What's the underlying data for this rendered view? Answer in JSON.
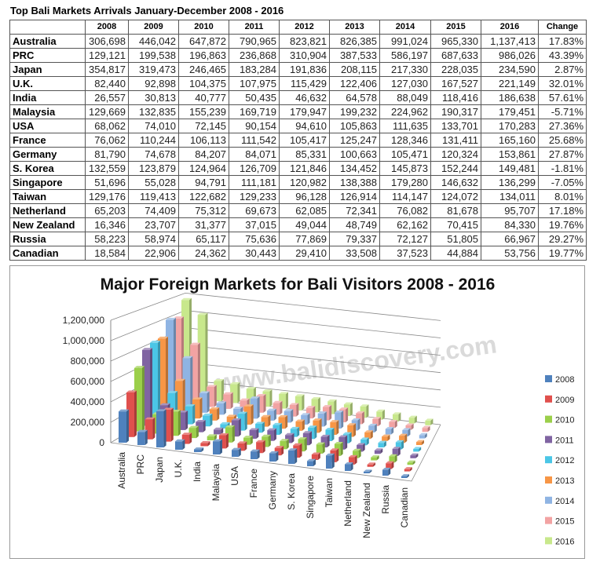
{
  "table": {
    "title": "Top Bali Markets Arrivals January-December 2008 - 2016",
    "headers": [
      "",
      "2008",
      "2009",
      "2010",
      "2011",
      "2012",
      "2013",
      "2014",
      "2015",
      "2016",
      "Change"
    ],
    "rows": [
      [
        "Australia",
        "306,698",
        "446,042",
        "647,872",
        "790,965",
        "823,821",
        "826,385",
        "991,024",
        "965,330",
        "1,137,413",
        "17.83%"
      ],
      [
        "PRC",
        "129,121",
        "199,538",
        "196,863",
        "236,868",
        "310,904",
        "387,533",
        "586,197",
        "687,633",
        "986,026",
        "43.39%"
      ],
      [
        "Japan",
        "354,817",
        "319,473",
        "246,465",
        "183,284",
        "191,836",
        "208,115",
        "217,330",
        "228,035",
        "234,590",
        "2.87%"
      ],
      [
        "U.K.",
        "82,440",
        "92,898",
        "104,375",
        "107,975",
        "115,429",
        "122,406",
        "127,030",
        "167,527",
        "221,149",
        "32.01%"
      ],
      [
        "India",
        "26,557",
        "30,813",
        "40,777",
        "50,435",
        "46,632",
        "64,578",
        "88,049",
        "118,416",
        "186,638",
        "57.61%"
      ],
      [
        "Malaysia",
        "129,669",
        "132,835",
        "155,239",
        "169,719",
        "179,947",
        "199,232",
        "224,962",
        "190,317",
        "179,451",
        "-5.71%"
      ],
      [
        "USA",
        "68,062",
        "74,010",
        "72,145",
        "90,154",
        "94,610",
        "105,863",
        "111,635",
        "133,701",
        "170,283",
        "27.36%"
      ],
      [
        "France",
        "76,062",
        "110,244",
        "106,113",
        "111,542",
        "105,417",
        "125,247",
        "128,346",
        "131,411",
        "165,160",
        "25.68%"
      ],
      [
        "Germany",
        "81,790",
        "74,678",
        "84,207",
        "84,071",
        "85,331",
        "100,663",
        "105,471",
        "120,324",
        "153,861",
        "27.87%"
      ],
      [
        "S. Korea",
        "132,559",
        "123,879",
        "124,964",
        "126,709",
        "121,846",
        "134,452",
        "145,873",
        "152,244",
        "149,481",
        "-1.81%"
      ],
      [
        "Singapore",
        "51,696",
        "55,028",
        "94,791",
        "111,181",
        "120,982",
        "138,388",
        "179,280",
        "146,632",
        "136,299",
        "-7.05%"
      ],
      [
        "Taiwan",
        "129,176",
        "119,413",
        "122,682",
        "129,233",
        "96,128",
        "126,914",
        "114,147",
        "124,072",
        "134,011",
        "8.01%"
      ],
      [
        "Netherland",
        "65,203",
        "74,409",
        "75,312",
        "69,673",
        "62,085",
        "72,341",
        "76,082",
        "81,678",
        "95,707",
        "17.18%"
      ],
      [
        "New Zealand",
        "16,346",
        "23,707",
        "31,377",
        "37,015",
        "49,044",
        "48,749",
        "62,162",
        "70,415",
        "84,330",
        "19.76%"
      ],
      [
        "Russia",
        "58,223",
        "58,974",
        "65,117",
        "75,636",
        "77,869",
        "79,337",
        "72,127",
        "51,805",
        "66,967",
        "29.27%"
      ],
      [
        "Canadian",
        "18,584",
        "22,906",
        "24,362",
        "30,443",
        "29,410",
        "33,508",
        "37,523",
        "44,884",
        "53,756",
        "19.77%"
      ]
    ]
  },
  "watermark": "www.balidiscovery.com",
  "chart_data": {
    "type": "bar",
    "style": "3d-clustered-columns",
    "title": "Major Foreign Markets for Bali Visitors 2008 - 2016",
    "categories": [
      "Australia",
      "PRC",
      "Japan",
      "U.K.",
      "India",
      "Malaysia",
      "USA",
      "France",
      "Germany",
      "S. Korea",
      "Singapore",
      "Taiwan",
      "Netherland",
      "New Zealand",
      "Russia",
      "Canadian"
    ],
    "ylim": [
      0,
      1200000
    ],
    "yticks": [
      "0",
      "200,000",
      "400,000",
      "600,000",
      "800,000",
      "1,000,000",
      "1,200,000"
    ],
    "grid": true,
    "legend_position": "right",
    "series": [
      {
        "name": "2008",
        "color": "#4f81bd",
        "values": [
          306698,
          129121,
          354817,
          82440,
          26557,
          129669,
          68062,
          76062,
          81790,
          132559,
          51696,
          129176,
          65203,
          16346,
          58223,
          18584
        ]
      },
      {
        "name": "2009",
        "color": "#e0504d",
        "values": [
          446042,
          199538,
          319473,
          92898,
          30813,
          132835,
          74010,
          110244,
          74678,
          123879,
          55028,
          119413,
          74409,
          23707,
          58974,
          22906
        ]
      },
      {
        "name": "2010",
        "color": "#9bcf4a",
        "values": [
          647872,
          196863,
          246465,
          104375,
          40777,
          155239,
          72145,
          106113,
          84207,
          124964,
          94791,
          122682,
          75312,
          31377,
          65117,
          24362
        ]
      },
      {
        "name": "2011",
        "color": "#8064a2",
        "values": [
          790965,
          236868,
          183284,
          107975,
          50435,
          169719,
          90154,
          111542,
          84071,
          126709,
          111181,
          129233,
          69673,
          37015,
          75636,
          30443
        ]
      },
      {
        "name": "2012",
        "color": "#4bc6e6",
        "values": [
          823821,
          310904,
          191836,
          115429,
          46632,
          179947,
          94610,
          105417,
          85331,
          121846,
          120982,
          96128,
          62085,
          49044,
          77869,
          29410
        ]
      },
      {
        "name": "2013",
        "color": "#f79646",
        "values": [
          826385,
          387533,
          208115,
          122406,
          64578,
          199232,
          105863,
          125247,
          100663,
          134452,
          138388,
          126914,
          72341,
          48749,
          79337,
          33508
        ]
      },
      {
        "name": "2014",
        "color": "#8fb4e3",
        "values": [
          991024,
          586197,
          217330,
          127030,
          88049,
          224962,
          111635,
          128346,
          105471,
          145873,
          179280,
          114147,
          76082,
          62162,
          72127,
          37523
        ]
      },
      {
        "name": "2015",
        "color": "#f2a3a3",
        "values": [
          965330,
          687633,
          228035,
          167527,
          118416,
          190317,
          133701,
          131411,
          120324,
          152244,
          146632,
          124072,
          81678,
          70415,
          51805,
          44884
        ]
      },
      {
        "name": "2016",
        "color": "#c8e88c",
        "values": [
          1137413,
          986026,
          234590,
          221149,
          186638,
          179451,
          170283,
          165160,
          153861,
          149481,
          136299,
          134011,
          95707,
          84330,
          66967,
          53756
        ]
      }
    ]
  }
}
